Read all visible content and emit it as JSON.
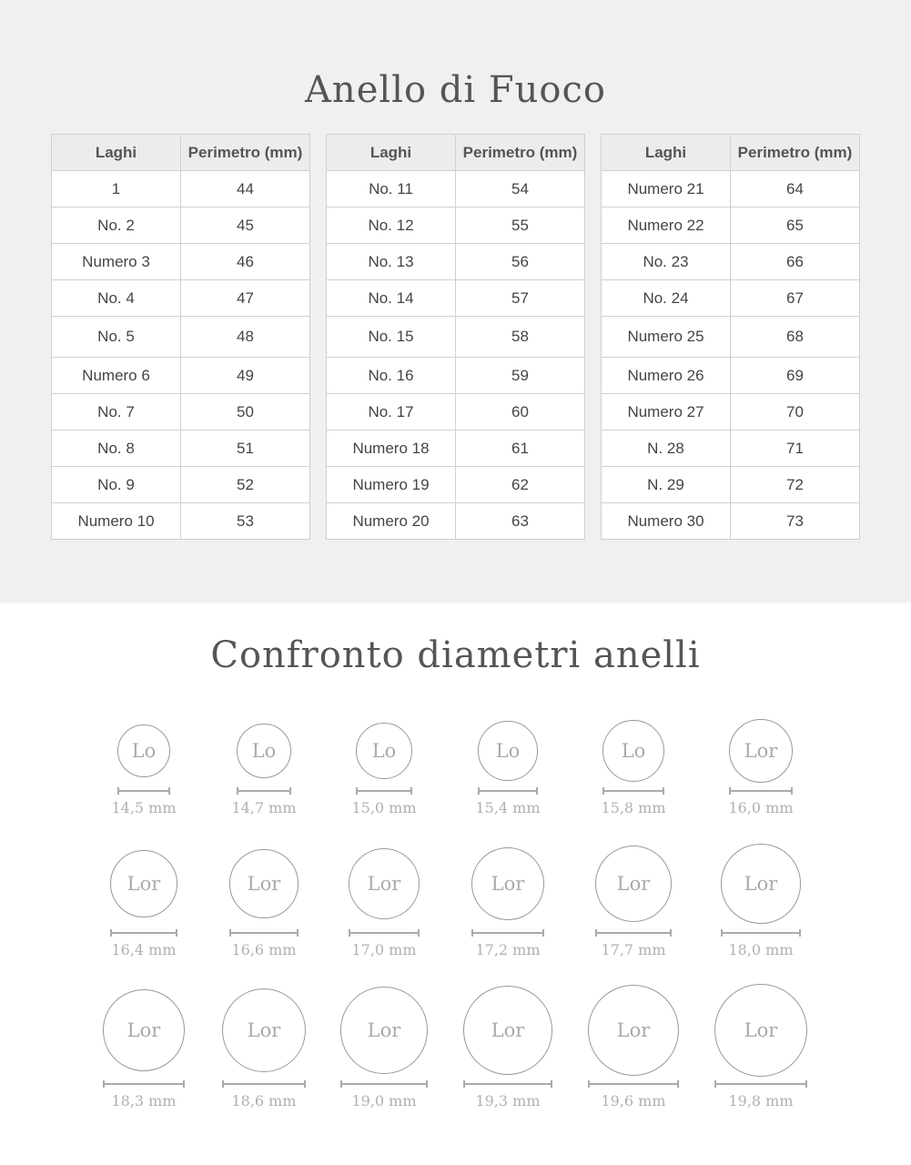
{
  "top_title": "Anello di Fuoco",
  "tables": [
    {
      "headers": [
        "Laghi",
        "Perimetro (mm)"
      ],
      "rows": [
        [
          "1",
          "44"
        ],
        [
          "No. 2",
          "45"
        ],
        [
          "Numero 3",
          "46"
        ],
        [
          "No. 4",
          "47"
        ],
        [
          "No. 5",
          "48"
        ],
        [
          "Numero 6",
          "49"
        ],
        [
          "No. 7",
          "50"
        ],
        [
          "No. 8",
          "51"
        ],
        [
          "No. 9",
          "52"
        ],
        [
          "Numero 10",
          "53"
        ]
      ]
    },
    {
      "headers": [
        "Laghi",
        "Perimetro (mm)"
      ],
      "rows": [
        [
          "No. 11",
          "54"
        ],
        [
          "No. 12",
          "55"
        ],
        [
          "No. 13",
          "56"
        ],
        [
          "No. 14",
          "57"
        ],
        [
          "No. 15",
          "58"
        ],
        [
          "No. 16",
          "59"
        ],
        [
          "No. 17",
          "60"
        ],
        [
          "Numero 18",
          "61"
        ],
        [
          "Numero 19",
          "62"
        ],
        [
          "Numero 20",
          "63"
        ]
      ]
    },
    {
      "headers": [
        "Laghi",
        "Perimetro (mm)"
      ],
      "rows": [
        [
          "Numero 21",
          "64"
        ],
        [
          "Numero 22",
          "65"
        ],
        [
          "No. 23",
          "66"
        ],
        [
          "No. 24",
          "67"
        ],
        [
          "Numero 25",
          "68"
        ],
        [
          "Numero 26",
          "69"
        ],
        [
          "Numero 27",
          "70"
        ],
        [
          "N. 28",
          "71"
        ],
        [
          "N. 29",
          "72"
        ],
        [
          "Numero 30",
          "73"
        ]
      ]
    }
  ],
  "bottom_title": "Confronto diametri anelli",
  "rings": [
    {
      "text": "Lo",
      "diameter_mm": 14.5,
      "label": "14,5 mm"
    },
    {
      "text": "Lo",
      "diameter_mm": 14.7,
      "label": "14,7 mm"
    },
    {
      "text": "Lo",
      "diameter_mm": 15.0,
      "label": "15,0 mm"
    },
    {
      "text": "Lo",
      "diameter_mm": 15.4,
      "label": "15,4 mm"
    },
    {
      "text": "Lo",
      "diameter_mm": 15.8,
      "label": "15,8 mm"
    },
    {
      "text": "Lor",
      "diameter_mm": 16.0,
      "label": "16,0 mm"
    },
    {
      "text": "Lor",
      "diameter_mm": 16.4,
      "label": "16,4 mm"
    },
    {
      "text": "Lor",
      "diameter_mm": 16.6,
      "label": "16,6 mm"
    },
    {
      "text": "Lor",
      "diameter_mm": 17.0,
      "label": "17,0 mm"
    },
    {
      "text": "Lor",
      "diameter_mm": 17.2,
      "label": "17,2 mm"
    },
    {
      "text": "Lor",
      "diameter_mm": 17.7,
      "label": "17,7 mm"
    },
    {
      "text": "Lor",
      "diameter_mm": 18.0,
      "label": "18,0 mm"
    },
    {
      "text": "Lor",
      "diameter_mm": 18.3,
      "label": "18,3 mm"
    },
    {
      "text": "Lor",
      "diameter_mm": 18.6,
      "label": "18,6 mm"
    },
    {
      "text": "Lor",
      "diameter_mm": 19.0,
      "label": "19,0 mm"
    },
    {
      "text": "Lor",
      "diameter_mm": 19.3,
      "label": "19,3 mm"
    },
    {
      "text": "Lor",
      "diameter_mm": 19.6,
      "label": "19,6 mm"
    },
    {
      "text": "Lor",
      "diameter_mm": 19.8,
      "label": "19,8 mm"
    }
  ]
}
